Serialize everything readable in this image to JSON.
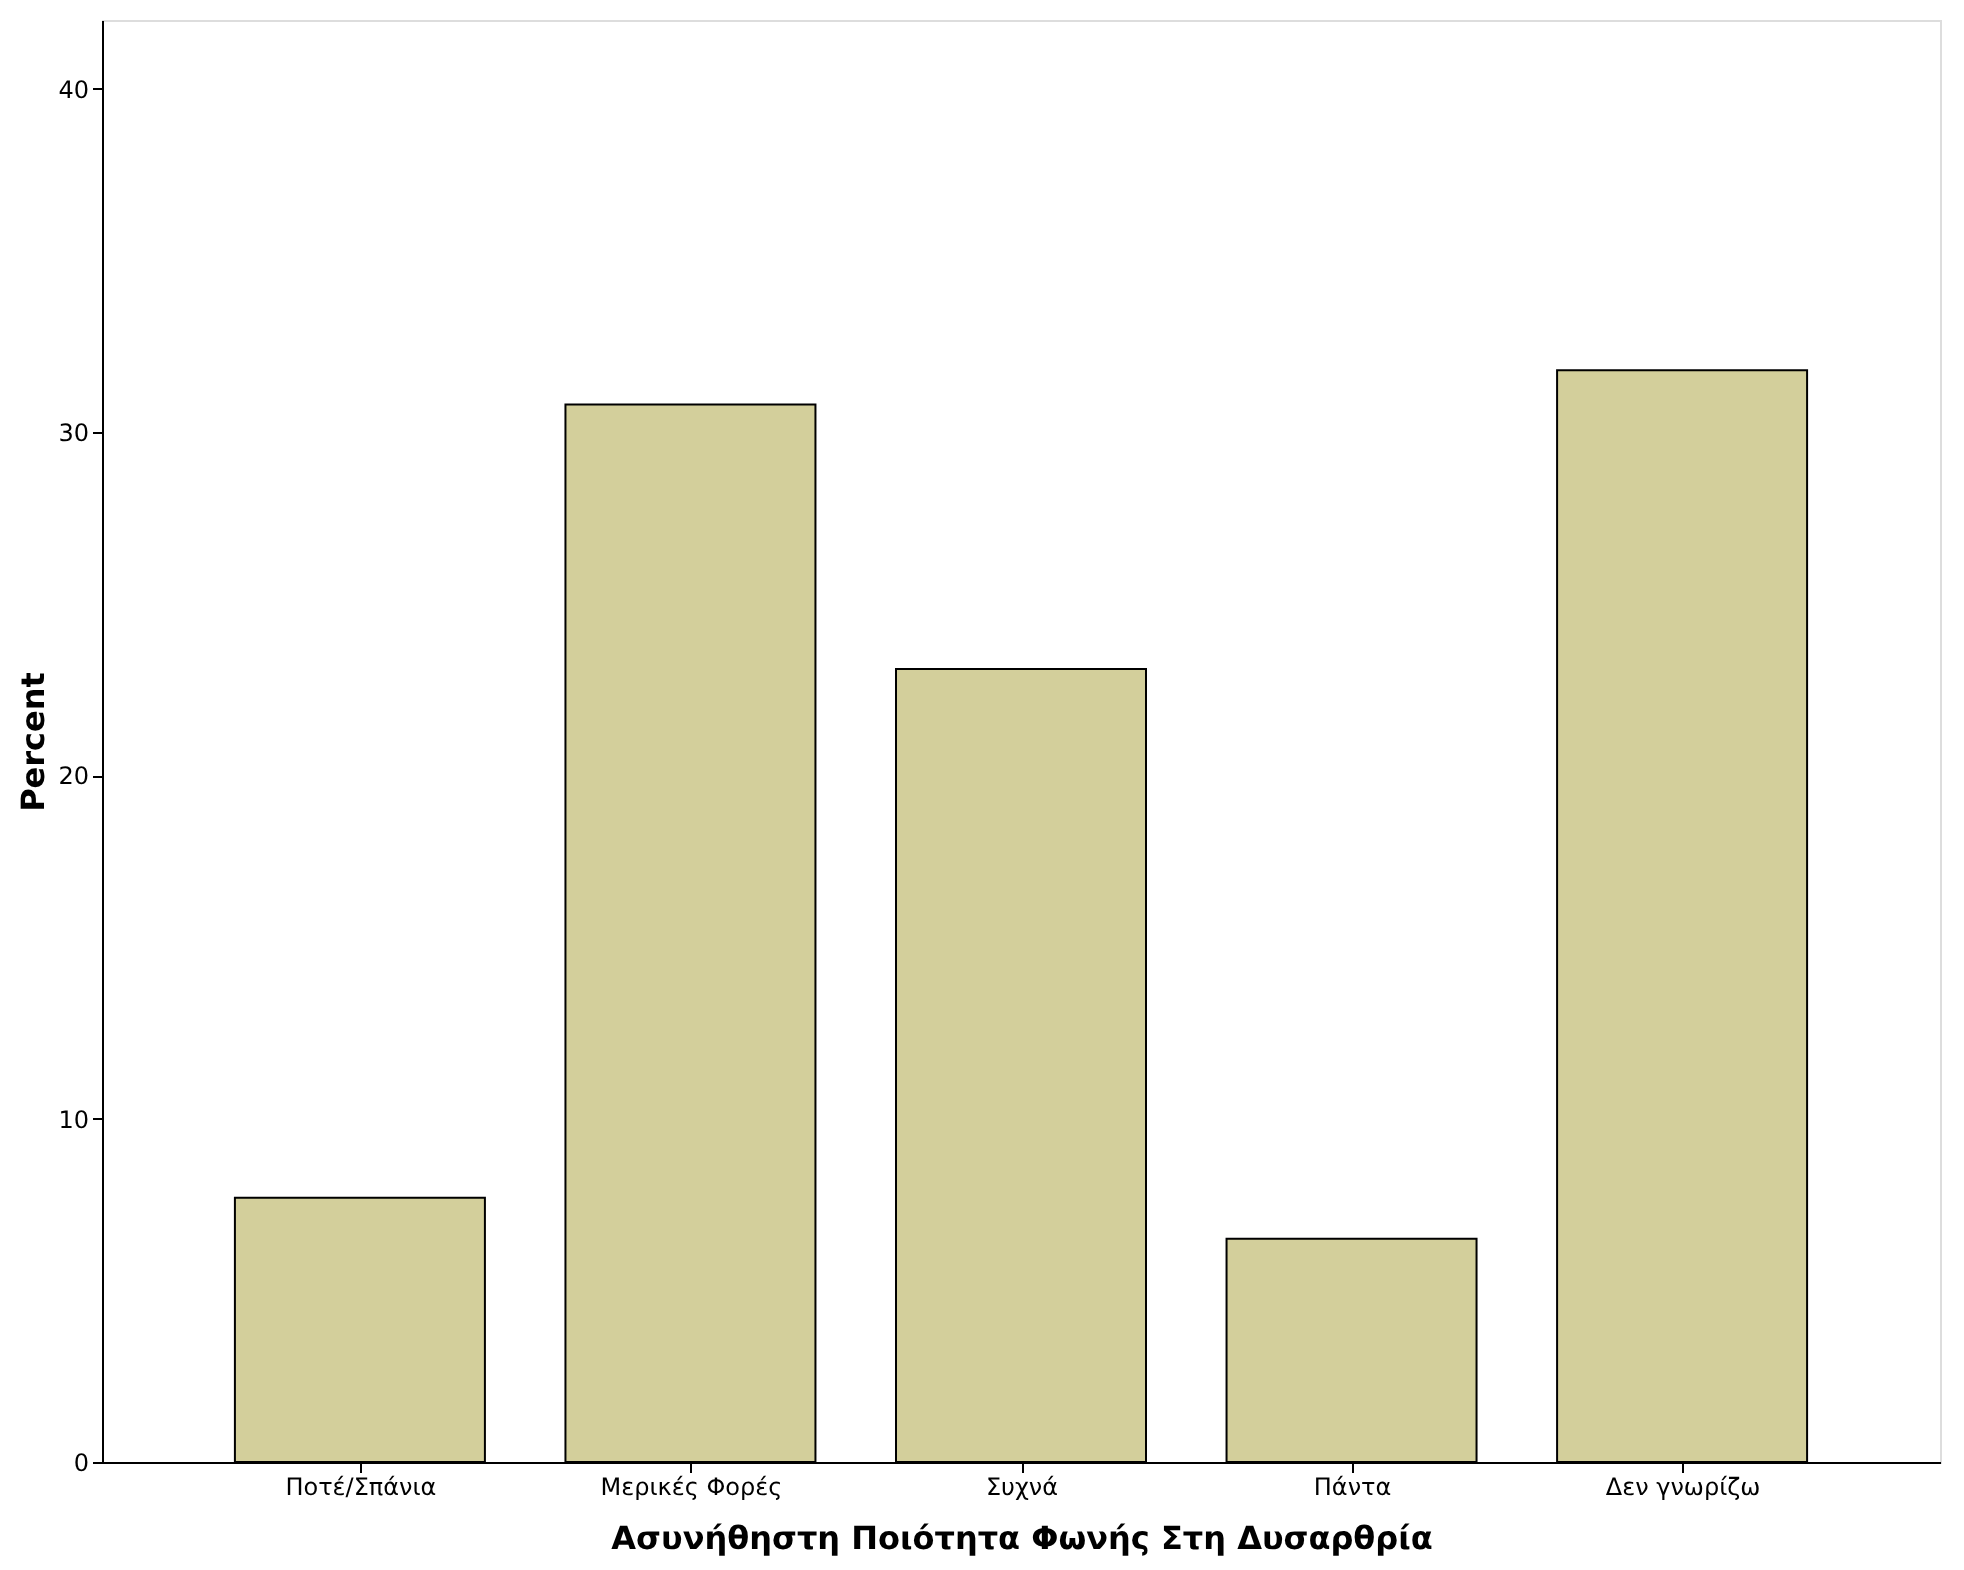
{
  "chart_data": {
    "type": "bar",
    "xlabel": "Ασυνήθηστη Ποιότητα Φωνής Στη Δυσαρθρία",
    "ylabel": "Percent",
    "categories": [
      "Ποτέ/Σπάνια",
      "Μερικές Φορές",
      "Συχνά",
      "Πάντα",
      "Δεν γνωρίζω"
    ],
    "values": [
      7.7,
      30.8,
      23.1,
      6.5,
      31.8
    ],
    "color": "#d3cf9b",
    "ylim": [
      0,
      42
    ],
    "yticks": [
      0,
      10,
      20,
      30,
      40
    ],
    "grid": false
  }
}
